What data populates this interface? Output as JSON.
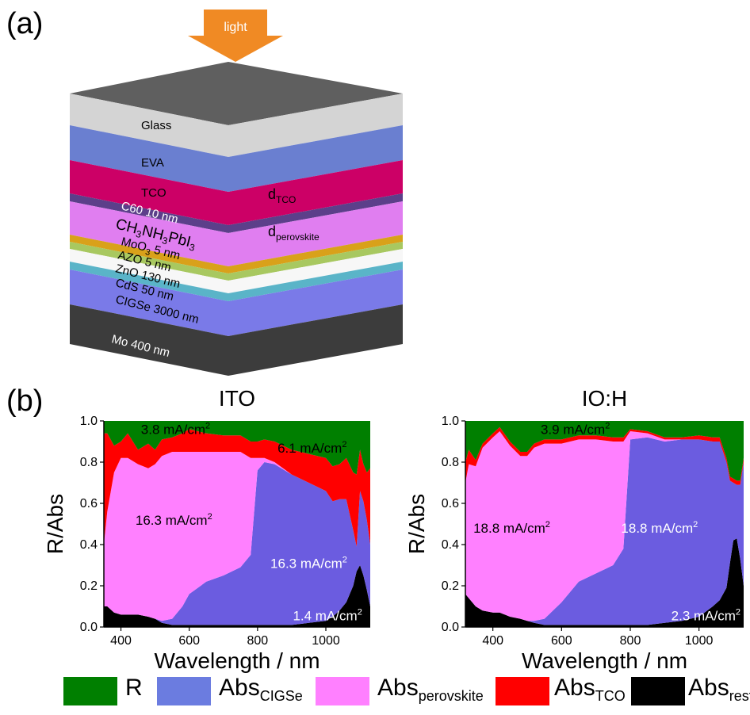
{
  "panel_a": {
    "panel_label": "(a)",
    "light_label": "light",
    "layers": [
      {
        "label": "Glass",
        "color": "#d4d4d4",
        "text_color": "#000000"
      },
      {
        "label": "EVA",
        "color": "#6a7fd0",
        "text_color": "#000000"
      },
      {
        "label": "TCO",
        "color": "#cc0066",
        "text_color": "#000000"
      },
      {
        "label": "C60  10 nm",
        "color": "#5c3f8a",
        "text_color": "#ffffff"
      },
      {
        "label": "CH3NH3PbI3",
        "color": "#e07ef0",
        "text_color": "#000000"
      },
      {
        "label": "MoO3  5 nm",
        "color": "#d9a11a",
        "text_color": "#000000"
      },
      {
        "label": "AZO  5 nm",
        "color": "#a8c860",
        "text_color": "#000000"
      },
      {
        "label": "ZnO  130 nm",
        "color": "#f7f7f7",
        "text_color": "#000000"
      },
      {
        "label": "CdS  50 nm",
        "color": "#5ab4c8",
        "text_color": "#000000"
      },
      {
        "label": "CIGSe  3000 nm",
        "color": "#7a7ae8",
        "text_color": "#000000"
      },
      {
        "label": "Mo  400 nm",
        "color": "#3c3c3c",
        "text_color": "#ffffff"
      }
    ],
    "top_color": "#5f5f5f",
    "d_tco": "d",
    "d_tco_sub": "TCO",
    "d_perovskite": "d",
    "d_perovskite_sub": "perovskite"
  },
  "panel_b": {
    "panel_label": "(b)"
  },
  "colors": {
    "R": "#007f00",
    "Abs_CIGSe": "#6b5ce0",
    "Abs_perovskite": "#ff80ff",
    "Abs_TCO": "#ff0000",
    "Abs_rest": "#000000"
  },
  "legend": [
    {
      "key": "R",
      "main": "R",
      "sub": ""
    },
    {
      "key": "Abs_CIGSe",
      "main": "Abs",
      "sub": "CIGSe"
    },
    {
      "key": "Abs_perovskite",
      "main": "Abs",
      "sub": "perovskite"
    },
    {
      "key": "Abs_TCO",
      "main": "Abs",
      "sub": "TCO"
    },
    {
      "key": "Abs_rest",
      "main": "Abs",
      "sub": "rest"
    }
  ],
  "chart_data": [
    {
      "type": "area",
      "stacked": true,
      "title": "ITO",
      "xlabel": "Wavelength / nm",
      "ylabel": "R/Abs",
      "xlim": [
        350,
        1130
      ],
      "ylim": [
        0.0,
        1.0
      ],
      "xticks": [
        400,
        600,
        800,
        1000
      ],
      "yticks": [
        "0.0",
        "0.2",
        "0.4",
        "0.6",
        "0.8",
        "1.0"
      ],
      "x": [
        350,
        360,
        380,
        400,
        420,
        450,
        480,
        500,
        520,
        550,
        580,
        600,
        650,
        700,
        750,
        780,
        800,
        820,
        850,
        900,
        950,
        1000,
        1020,
        1040,
        1060,
        1080,
        1090,
        1100,
        1110,
        1120,
        1130
      ],
      "series": [
        {
          "name": "Abs_rest",
          "values": [
            0.1,
            0.1,
            0.07,
            0.06,
            0.06,
            0.06,
            0.05,
            0.04,
            0.02,
            0.01,
            0.01,
            0.01,
            0.01,
            0.01,
            0.01,
            0.01,
            0.01,
            0.01,
            0.01,
            0.01,
            0.02,
            0.03,
            0.05,
            0.08,
            0.12,
            0.2,
            0.27,
            0.3,
            0.25,
            0.18,
            0.1
          ]
        },
        {
          "name": "Abs_CIGSe",
          "values": [
            0.0,
            0.0,
            0.0,
            0.0,
            0.0,
            0.0,
            0.0,
            0.0,
            0.01,
            0.03,
            0.09,
            0.15,
            0.21,
            0.24,
            0.28,
            0.34,
            0.75,
            0.79,
            0.78,
            0.73,
            0.68,
            0.63,
            0.56,
            0.54,
            0.5,
            0.27,
            0.12,
            0.36,
            0.36,
            0.34,
            0.3
          ]
        },
        {
          "name": "Abs_perovskite",
          "values": [
            0.3,
            0.46,
            0.68,
            0.76,
            0.76,
            0.73,
            0.72,
            0.75,
            0.8,
            0.81,
            0.75,
            0.69,
            0.63,
            0.6,
            0.56,
            0.47,
            0.06,
            0.02,
            0.01,
            0.0,
            0.0,
            0.0,
            0.0,
            0.0,
            0.0,
            0.0,
            0.0,
            0.0,
            0.0,
            0.0,
            0.0
          ]
        },
        {
          "name": "Abs_TCO",
          "values": [
            0.54,
            0.38,
            0.13,
            0.08,
            0.12,
            0.07,
            0.12,
            0.07,
            0.08,
            0.07,
            0.09,
            0.11,
            0.09,
            0.08,
            0.08,
            0.08,
            0.08,
            0.09,
            0.1,
            0.12,
            0.14,
            0.16,
            0.17,
            0.17,
            0.2,
            0.28,
            0.35,
            0.2,
            0.18,
            0.23,
            0.37
          ]
        },
        {
          "name": "R",
          "values": [
            0.06,
            0.06,
            0.12,
            0.1,
            0.06,
            0.14,
            0.11,
            0.14,
            0.09,
            0.08,
            0.06,
            0.04,
            0.06,
            0.07,
            0.07,
            0.1,
            0.1,
            0.09,
            0.1,
            0.14,
            0.16,
            0.18,
            0.22,
            0.21,
            0.18,
            0.25,
            0.26,
            0.14,
            0.21,
            0.25,
            0.23
          ]
        }
      ],
      "annotations": [
        {
          "text": "3.8 mA/cm",
          "sup": "2",
          "x": 560,
          "y": 0.96,
          "color": "#000000"
        },
        {
          "text": "6.1 mA/cm",
          "sup": "2",
          "x": 960,
          "y": 0.87,
          "color": "#000000"
        },
        {
          "text": "16.3 mA/cm",
          "sup": "2",
          "x": 555,
          "y": 0.52,
          "color": "#000000"
        },
        {
          "text": "16.3 mA/cm",
          "sup": "2",
          "x": 950,
          "y": 0.31,
          "color": "#ffffff"
        },
        {
          "text": "1.4 mA/cm",
          "sup": "2",
          "x": 1005,
          "y": 0.055,
          "color": "#ffffff"
        }
      ]
    },
    {
      "type": "area",
      "stacked": true,
      "title": "IO:H",
      "xlabel": "Wavelength / nm",
      "ylabel": "R/Abs",
      "xlim": [
        320,
        1130
      ],
      "ylim": [
        0.0,
        1.0
      ],
      "xticks": [
        400,
        600,
        800,
        1000
      ],
      "yticks": [
        "0.0",
        "0.2",
        "0.4",
        "0.6",
        "0.8",
        "1.0"
      ],
      "x": [
        320,
        330,
        350,
        370,
        400,
        420,
        450,
        480,
        500,
        520,
        550,
        600,
        650,
        700,
        750,
        780,
        800,
        850,
        900,
        950,
        1000,
        1040,
        1060,
        1080,
        1090,
        1100,
        1110,
        1120,
        1130
      ],
      "series": [
        {
          "name": "Abs_rest",
          "values": [
            0.16,
            0.14,
            0.1,
            0.08,
            0.07,
            0.07,
            0.05,
            0.04,
            0.03,
            0.02,
            0.01,
            0.01,
            0.01,
            0.01,
            0.01,
            0.01,
            0.01,
            0.01,
            0.02,
            0.03,
            0.05,
            0.1,
            0.13,
            0.19,
            0.31,
            0.42,
            0.43,
            0.33,
            0.2
          ]
        },
        {
          "name": "Abs_CIGSe",
          "values": [
            0.0,
            0.0,
            0.0,
            0.0,
            0.0,
            0.0,
            0.0,
            0.0,
            0.0,
            0.01,
            0.03,
            0.11,
            0.21,
            0.25,
            0.29,
            0.37,
            0.9,
            0.91,
            0.88,
            0.88,
            0.86,
            0.8,
            0.77,
            0.61,
            0.4,
            0.28,
            0.26,
            0.36,
            0.6
          ]
        },
        {
          "name": "Abs_perovskite",
          "values": [
            0.54,
            0.65,
            0.68,
            0.79,
            0.85,
            0.88,
            0.83,
            0.79,
            0.8,
            0.84,
            0.85,
            0.77,
            0.69,
            0.65,
            0.6,
            0.52,
            0.04,
            0.02,
            0.01,
            0.0,
            0.0,
            0.0,
            0.0,
            0.0,
            0.0,
            0.0,
            0.0,
            0.0,
            0.0
          ]
        },
        {
          "name": "Abs_TCO",
          "values": [
            0.1,
            0.07,
            0.03,
            0.02,
            0.02,
            0.02,
            0.02,
            0.02,
            0.02,
            0.02,
            0.02,
            0.02,
            0.02,
            0.02,
            0.02,
            0.02,
            0.01,
            0.01,
            0.01,
            0.01,
            0.02,
            0.02,
            0.02,
            0.02,
            0.02,
            0.02,
            0.02,
            0.02,
            0.02
          ]
        },
        {
          "name": "R",
          "values": [
            0.2,
            0.14,
            0.19,
            0.11,
            0.06,
            0.03,
            0.1,
            0.15,
            0.15,
            0.13,
            0.09,
            0.09,
            0.07,
            0.07,
            0.08,
            0.08,
            0.04,
            0.05,
            0.08,
            0.08,
            0.07,
            0.08,
            0.08,
            0.18,
            0.27,
            0.28,
            0.29,
            0.29,
            0.18
          ]
        }
      ],
      "annotations": [
        {
          "text": "3.9 mA/cm",
          "sup": "2",
          "x": 640,
          "y": 0.96,
          "color": "#000000"
        },
        {
          "text": "18.8 mA/cm",
          "sup": "2",
          "x": 455,
          "y": 0.48,
          "color": "#000000"
        },
        {
          "text": "18.8 mA/cm",
          "sup": "2",
          "x": 885,
          "y": 0.48,
          "color": "#ffffff"
        },
        {
          "text": "2.3 mA/cm",
          "sup": "2",
          "x": 1020,
          "y": 0.055,
          "color": "#ffffff"
        }
      ]
    }
  ]
}
